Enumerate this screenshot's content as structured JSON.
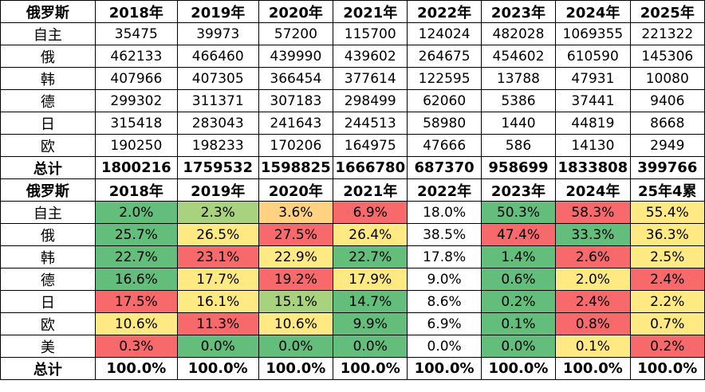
{
  "table1": {
    "header": [
      "俄罗斯",
      "2018年",
      "2019年",
      "2020年",
      "2021年",
      "2022年",
      "2023年",
      "2024年",
      "2025年"
    ],
    "rows": [
      {
        "label": "自主",
        "values": [
          "35475",
          "39973",
          "57200",
          "115700",
          "124024",
          "482028",
          "1069355",
          "221322"
        ]
      },
      {
        "label": "俄",
        "values": [
          "462133",
          "466460",
          "439990",
          "439602",
          "264675",
          "454602",
          "610590",
          "145306"
        ]
      },
      {
        "label": "韩",
        "values": [
          "407966",
          "407305",
          "366454",
          "377614",
          "122595",
          "13788",
          "47931",
          "10080"
        ]
      },
      {
        "label": "德",
        "values": [
          "299302",
          "311371",
          "307183",
          "298499",
          "62060",
          "5386",
          "37441",
          "9406"
        ]
      },
      {
        "label": "日",
        "values": [
          "315418",
          "283043",
          "241643",
          "244513",
          "58980",
          "1440",
          "44819",
          "8668"
        ]
      },
      {
        "label": "欧",
        "values": [
          "190250",
          "198233",
          "170206",
          "164975",
          "47666",
          "586",
          "14130",
          "2949"
        ]
      }
    ],
    "total": {
      "label": "总计",
      "values": [
        "1800216",
        "1759532",
        "1598825",
        "1666780",
        "687370",
        "958699",
        "1833808",
        "399766"
      ]
    }
  },
  "table2": {
    "header": [
      "俄罗斯",
      "2018年",
      "2019年",
      "2020年",
      "2021年",
      "2022年",
      "2023年",
      "2024年",
      "25年4累"
    ],
    "rows": [
      {
        "label": "自主",
        "values": [
          "2.0%",
          "2.3%",
          "3.6%",
          "6.9%",
          "18.0%",
          "50.3%",
          "58.3%",
          "55.4%"
        ],
        "colors": [
          "#63be7b",
          "#a9d27f",
          "#fed280",
          "#f8696b",
          "#ffffff",
          "#63be7b",
          "#f8696b",
          "#fee983"
        ]
      },
      {
        "label": "俄",
        "values": [
          "25.7%",
          "26.5%",
          "27.5%",
          "26.4%",
          "38.5%",
          "47.4%",
          "33.3%",
          "36.3%"
        ],
        "colors": [
          "#63be7b",
          "#fee983",
          "#f8696b",
          "#fee983",
          "#ffffff",
          "#f8696b",
          "#63be7b",
          "#fee983"
        ]
      },
      {
        "label": "韩",
        "values": [
          "22.7%",
          "23.1%",
          "22.9%",
          "22.7%",
          "17.8%",
          "1.4%",
          "2.6%",
          "2.5%"
        ],
        "colors": [
          "#63be7b",
          "#f8696b",
          "#fee983",
          "#63be7b",
          "#ffffff",
          "#63be7b",
          "#f8696b",
          "#fee983"
        ]
      },
      {
        "label": "德",
        "values": [
          "16.6%",
          "17.7%",
          "19.2%",
          "17.9%",
          "9.0%",
          "0.6%",
          "2.0%",
          "2.4%"
        ],
        "colors": [
          "#63be7b",
          "#fee983",
          "#f8696b",
          "#fee983",
          "#ffffff",
          "#63be7b",
          "#fee983",
          "#f8696b"
        ]
      },
      {
        "label": "日",
        "values": [
          "17.5%",
          "16.1%",
          "15.1%",
          "14.7%",
          "8.6%",
          "0.2%",
          "2.4%",
          "2.2%"
        ],
        "colors": [
          "#f8696b",
          "#fee983",
          "#a9d27f",
          "#63be7b",
          "#ffffff",
          "#63be7b",
          "#f8696b",
          "#fee983"
        ]
      },
      {
        "label": "欧",
        "values": [
          "10.6%",
          "11.3%",
          "10.6%",
          "9.9%",
          "6.9%",
          "0.1%",
          "0.8%",
          "0.7%"
        ],
        "colors": [
          "#fee983",
          "#f8696b",
          "#fee983",
          "#63be7b",
          "#ffffff",
          "#63be7b",
          "#f8696b",
          "#fee983"
        ]
      },
      {
        "label": "美",
        "values": [
          "0.3%",
          "0.0%",
          "0.0%",
          "0.0%",
          "0.0%",
          "0.0%",
          "0.1%",
          "0.2%"
        ],
        "colors": [
          "#f8696b",
          "#63be7b",
          "#63be7b",
          "#63be7b",
          "#ffffff",
          "#63be7b",
          "#fee983",
          "#f8696b"
        ]
      }
    ],
    "total": {
      "label": "总计",
      "values": [
        "100.0%",
        "100.0%",
        "100.0%",
        "100.0%",
        "100.0%",
        "100.0%",
        "100.0%",
        "100.0%"
      ]
    }
  }
}
